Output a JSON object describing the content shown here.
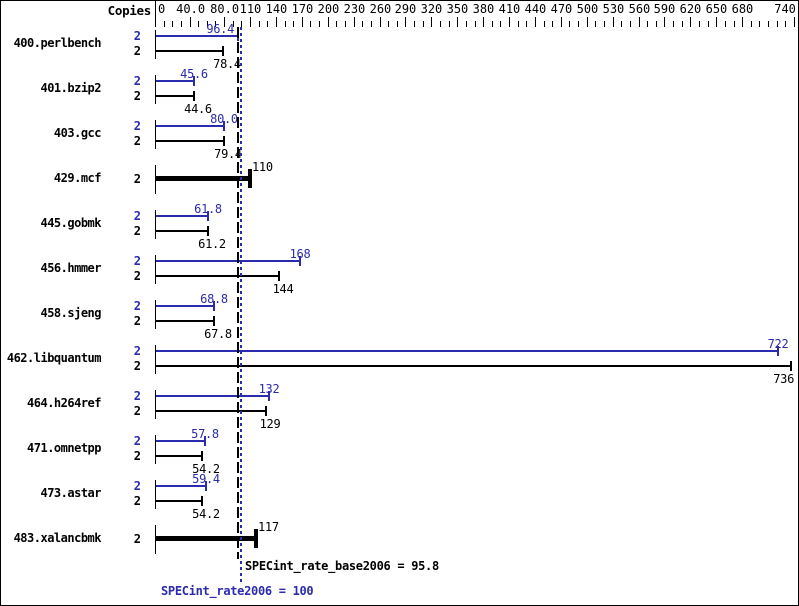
{
  "header": {
    "copies_label": "Copies"
  },
  "colors": {
    "peak_blue": "#2b2bad",
    "base_black": "#000000",
    "background": "#ffffff"
  },
  "axis": {
    "unit_min": 0,
    "unit_max": 740,
    "minor_step": 10,
    "labels": [
      {
        "v": 0,
        "t": "0"
      },
      {
        "v": 40,
        "t": "40.0"
      },
      {
        "v": 80,
        "t": "80.0"
      },
      {
        "v": 110,
        "t": "110"
      },
      {
        "v": 140,
        "t": "140"
      },
      {
        "v": 170,
        "t": "170"
      },
      {
        "v": 200,
        "t": "200"
      },
      {
        "v": 230,
        "t": "230"
      },
      {
        "v": 260,
        "t": "260"
      },
      {
        "v": 290,
        "t": "290"
      },
      {
        "v": 320,
        "t": "320"
      },
      {
        "v": 350,
        "t": "350"
      },
      {
        "v": 380,
        "t": "380"
      },
      {
        "v": 410,
        "t": "410"
      },
      {
        "v": 440,
        "t": "440"
      },
      {
        "v": 470,
        "t": "470"
      },
      {
        "v": 500,
        "t": "500"
      },
      {
        "v": 530,
        "t": "530"
      },
      {
        "v": 560,
        "t": "560"
      },
      {
        "v": 590,
        "t": "590"
      },
      {
        "v": 620,
        "t": "620"
      },
      {
        "v": 650,
        "t": "650"
      },
      {
        "v": 680,
        "t": "680"
      },
      {
        "v": 740,
        "t": "740"
      }
    ]
  },
  "chart_data": {
    "type": "bar",
    "orientation": "horizontal",
    "xlim": [
      0,
      740
    ],
    "grid": false,
    "copies_column_header": "Copies",
    "series": [
      {
        "name": "SPECint_rate2006 (peak)",
        "color": "#2b2bad"
      },
      {
        "name": "SPECint_rate_base2006 (base)",
        "color": "#000000"
      }
    ],
    "benchmarks": [
      {
        "name": "400.perlbench",
        "copies": "2",
        "peak": {
          "value": 96.4,
          "label": "96.4"
        },
        "base": {
          "value": 78.4,
          "label": "78.4"
        }
      },
      {
        "name": "401.bzip2",
        "copies": "2",
        "peak": {
          "value": 45.6,
          "label": "45.6"
        },
        "base": {
          "value": 44.6,
          "label": "44.6"
        }
      },
      {
        "name": "403.gcc",
        "copies": "2",
        "peak": {
          "value": 80.0,
          "label": "80.0"
        },
        "base": {
          "value": 79.4,
          "label": "79.4"
        }
      },
      {
        "name": "429.mcf",
        "copies": "2",
        "single": {
          "value": 110,
          "label": "110"
        }
      },
      {
        "name": "445.gobmk",
        "copies": "2",
        "peak": {
          "value": 61.8,
          "label": "61.8"
        },
        "base": {
          "value": 61.2,
          "label": "61.2"
        }
      },
      {
        "name": "456.hmmer",
        "copies": "2",
        "peak": {
          "value": 168,
          "label": "168"
        },
        "base": {
          "value": 144,
          "label": "144"
        }
      },
      {
        "name": "458.sjeng",
        "copies": "2",
        "peak": {
          "value": 68.8,
          "label": "68.8"
        },
        "base": {
          "value": 67.8,
          "label": "67.8"
        }
      },
      {
        "name": "462.libquantum",
        "copies": "2",
        "peak": {
          "value": 722,
          "label": "722"
        },
        "base": {
          "value": 736,
          "label": "736"
        }
      },
      {
        "name": "464.h264ref",
        "copies": "2",
        "peak": {
          "value": 132,
          "label": "132"
        },
        "base": {
          "value": 129,
          "label": "129"
        }
      },
      {
        "name": "471.omnetpp",
        "copies": "2",
        "peak": {
          "value": 57.8,
          "label": "57.8"
        },
        "base": {
          "value": 54.2,
          "label": "54.2"
        }
      },
      {
        "name": "473.astar",
        "copies": "2",
        "peak": {
          "value": 59.4,
          "label": "59.4"
        },
        "base": {
          "value": 54.2,
          "label": "54.2"
        }
      },
      {
        "name": "483.xalancbmk",
        "copies": "2",
        "single": {
          "value": 117,
          "label": "117"
        }
      }
    ],
    "reference_lines": [
      {
        "id": "base",
        "value": 95.8,
        "style": "dashed",
        "color": "#000000",
        "label": "SPECint_rate_base2006 = 95.8"
      },
      {
        "id": "peak",
        "value": 100,
        "style": "dotted",
        "color": "#2b2bad",
        "label": "SPECint_rate2006 = 100"
      }
    ]
  },
  "footer": {
    "base_text": "SPECint_rate_base2006 = 95.8",
    "peak_text": "SPECint_rate2006 = 100"
  }
}
